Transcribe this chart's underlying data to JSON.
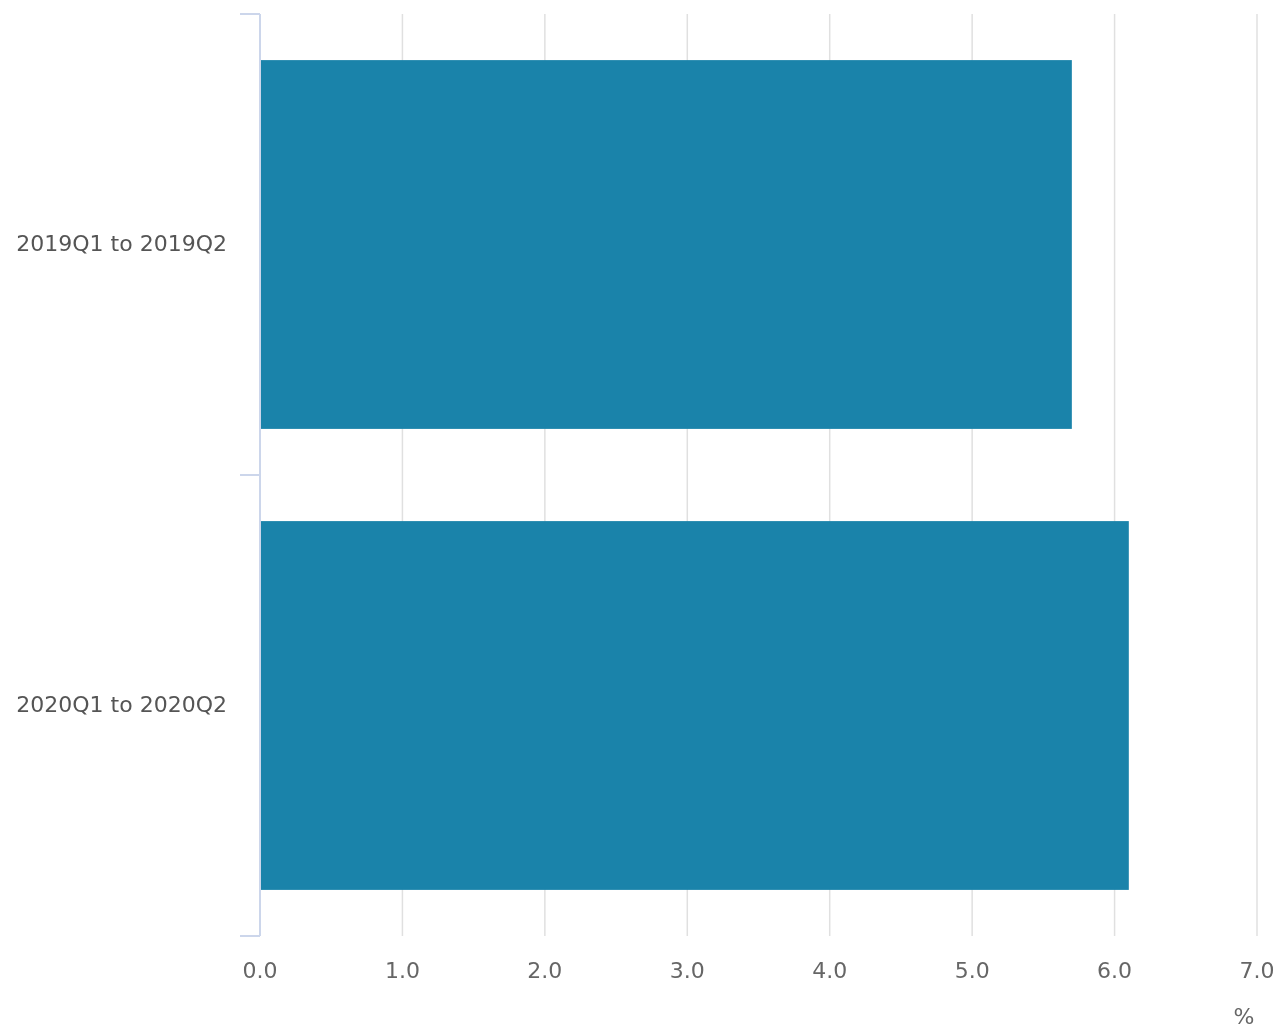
{
  "chart_data": {
    "type": "bar",
    "orientation": "horizontal",
    "categories": [
      "2019Q1 to 2019Q2",
      "2020Q1 to 2020Q2"
    ],
    "values": [
      5.7,
      6.1
    ],
    "color": "#1a83aa",
    "xlim": [
      0,
      7
    ],
    "xticks": [
      {
        "value": 0,
        "label": "0.0"
      },
      {
        "value": 1,
        "label": "1.0"
      },
      {
        "value": 2,
        "label": "2.0"
      },
      {
        "value": 3,
        "label": "3.0"
      },
      {
        "value": 4,
        "label": "4.0"
      },
      {
        "value": 5,
        "label": "5.0"
      },
      {
        "value": 6,
        "label": "6.0"
      },
      {
        "value": 7,
        "label": "7.0"
      }
    ],
    "xlabel": "%",
    "grid": "x"
  }
}
